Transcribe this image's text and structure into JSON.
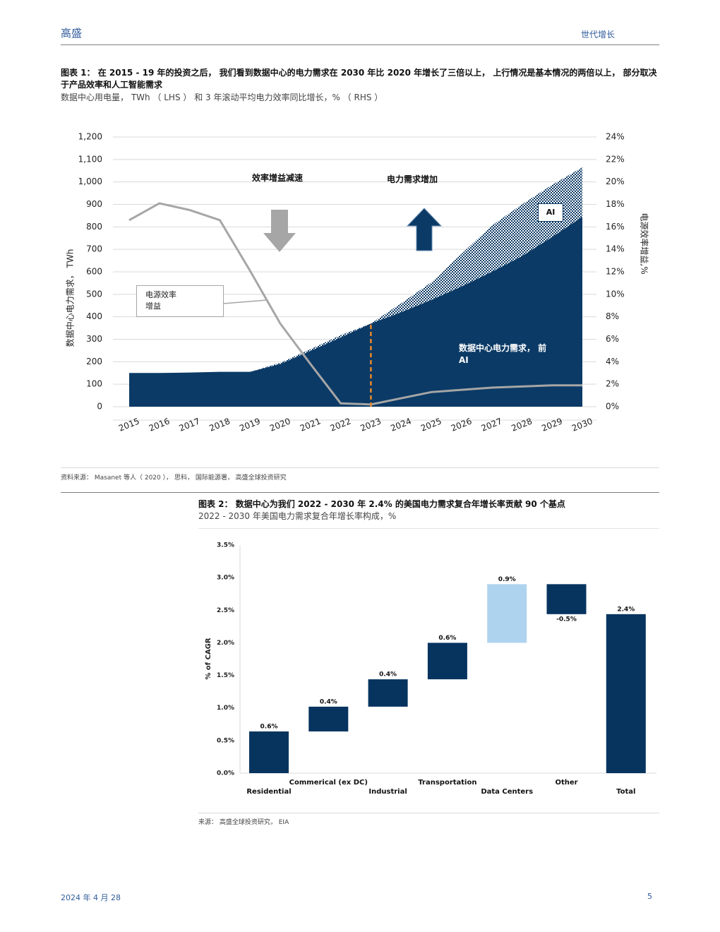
{
  "header": {
    "left": "高盛",
    "right": "世代增长"
  },
  "figure1": {
    "title": "图表 1： 在 2015 - 19 年的投资之后， 我们看到数据中心的电力需求在 2030 年比 2020 年增长了三倍以上， 上行情况是基本情况的两倍以上， 部分取决于产品效率和人工智能需求",
    "subtitle": "数据中心用电量， TWh （ LHS ） 和 3 年滚动平均电力效率同比增长，% （ RHS ）",
    "chart": {
      "type": "area",
      "categories": [
        "2015",
        "2016",
        "2017",
        "2018",
        "2019",
        "2020",
        "2021",
        "2022",
        "2023",
        "2024",
        "2025",
        "2026",
        "2027",
        "2028",
        "2029",
        "2030"
      ],
      "series": [
        {
          "name": "数据中心电力需求， 前\nAI",
          "color": "#0b3a66",
          "values": [
            150,
            150,
            152,
            155,
            155,
            190,
            248,
            308,
            370,
            420,
            475,
            535,
            600,
            670,
            755,
            845
          ]
        },
        {
          "name": "AI",
          "color": "#0b3a66",
          "pattern": "hatch",
          "values": [
            0,
            0,
            0,
            0,
            0,
            5,
            8,
            10,
            0,
            40,
            78,
            145,
            205,
            230,
            232,
            220
          ]
        },
        {
          "name": "电源效率\n增益",
          "color": "#a6a6a6",
          "axis": "y2",
          "values": [
            16.6,
            18.1,
            17.5,
            16.6,
            12.1,
            7.4,
            3.8,
            0.3,
            0.2,
            0.75,
            1.3,
            1.5,
            1.7,
            1.8,
            1.9,
            1.9
          ]
        }
      ],
      "ylim": [
        0,
        1200
      ],
      "yticks": [
        0,
        100,
        200,
        300,
        400,
        500,
        600,
        700,
        800,
        900,
        {
          "value": 1000,
          "label": "1,000"
        },
        {
          "value": 1100,
          "label": "1,100"
        },
        {
          "value": 1200,
          "label": "1,200"
        }
      ],
      "y2lim": [
        0,
        24
      ],
      "y2ticks": [
        {
          "value": 0,
          "label": "0%"
        },
        {
          "value": 2,
          "label": "2%"
        },
        {
          "value": 4,
          "label": "4%"
        },
        {
          "value": 6,
          "label": "6%"
        },
        {
          "value": 8,
          "label": "8%"
        },
        {
          "value": 10,
          "label": "10%"
        },
        {
          "value": 12,
          "label": "12%"
        },
        {
          "value": 14,
          "label": "14%"
        },
        {
          "value": 16,
          "label": "16%"
        },
        {
          "value": 18,
          "label": "18%"
        },
        {
          "value": 20,
          "label": "20%"
        },
        {
          "value": 22,
          "label": "22%"
        },
        {
          "value": 24,
          "label": "24%"
        }
      ],
      "y_label": "数据中心电力需求， TWh",
      "y2_label": "电源效率增益,%",
      "annotations": [
        "效率增益减速",
        "电力需求增加"
      ],
      "divider": {
        "at": "2023",
        "color": "#e8892b"
      },
      "grid": true
    },
    "source": "资料来源： Masanet 等人（ 2020 ）， 思科， 国际能源署， 高盛全球投资研究"
  },
  "figure2": {
    "title": "图表 2： 数据中心为我们 2022 - 2030 年 2.4% 的美国电力需求复合年增长率贡献 90 个基点",
    "subtitle": "2022 - 2030 年美国电力需求复合年增长率构成，%",
    "chart": {
      "type": "waterfall",
      "categories": [
        "Residential",
        "Commerical (ex DC)",
        "Industrial",
        "Transportation",
        "Data Centers",
        "Other",
        "Total"
      ],
      "values": [
        0.64,
        0.38,
        0.42,
        0.56,
        0.9,
        -0.46,
        2.44
      ],
      "value_labels": [
        "0.6%",
        "0.4%",
        "0.4%",
        "0.6%",
        "0.9%",
        "-0.5%",
        "2.4%"
      ],
      "colors": [
        "#06345f",
        "#06345f",
        "#06345f",
        "#06345f",
        "#aed3ef",
        "#06345f",
        "#06345f"
      ],
      "ylim": [
        0,
        3.5
      ],
      "yticks": [
        {
          "value": 0,
          "label": "0.0%"
        },
        {
          "value": 0.5,
          "label": "0.5%"
        },
        {
          "value": 1,
          "label": "1.0%"
        },
        {
          "value": 1.5,
          "label": "1.5%"
        },
        {
          "value": 2,
          "label": "2.0%"
        },
        {
          "value": 2.5,
          "label": "2.5%"
        },
        {
          "value": 3,
          "label": "3.0%"
        },
        {
          "value": 3.5,
          "label": "3.5%"
        }
      ],
      "y_label": "% of CAGR"
    },
    "source": "来源： 高盛全球投资研究， EIA"
  },
  "footer": {
    "date": "2024 年 4 月 28",
    "page": "5"
  }
}
